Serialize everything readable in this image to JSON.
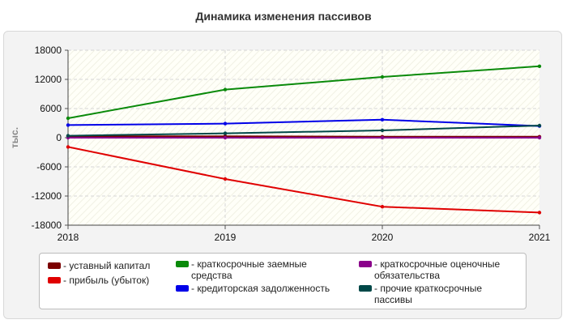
{
  "title": "Динамика изменения пассивов",
  "chart_data": {
    "type": "line",
    "title": "Динамика изменения пассивов",
    "xlabel": "",
    "ylabel": "тыс.",
    "x": [
      "2018",
      "2019",
      "2020",
      "2021"
    ],
    "ylim": [
      -18000,
      18000
    ],
    "yticks": [
      18000,
      12000,
      6000,
      0,
      -6000,
      -12000,
      -18000
    ],
    "ytick_labels": [
      "18000",
      "12000",
      "6000",
      "0",
      "-6000",
      "-12000",
      "-18000"
    ],
    "grid": true,
    "legend_position": "bottom",
    "series": [
      {
        "name": "- уставный капитал",
        "color": "#7b0000",
        "values": [
          300,
          300,
          200,
          200
        ]
      },
      {
        "name": "- прибыль (убыток)",
        "color": "#e00000",
        "values": [
          -1900,
          -8500,
          -14200,
          -15400
        ]
      },
      {
        "name": "- краткосрочные заемные средства",
        "color": "#0a8a0a",
        "values": [
          4000,
          9900,
          12500,
          14700
        ]
      },
      {
        "name": "- кредиторская задолженность",
        "color": "#0000e8",
        "values": [
          2600,
          2900,
          3700,
          2400
        ]
      },
      {
        "name": "- краткосрочные оценочные обязательства",
        "color": "#8a008a",
        "values": [
          0,
          0,
          0,
          0
        ]
      },
      {
        "name": "- прочие краткосрочные пассивы",
        "color": "#004848",
        "values": [
          400,
          900,
          1500,
          2500
        ]
      }
    ]
  }
}
